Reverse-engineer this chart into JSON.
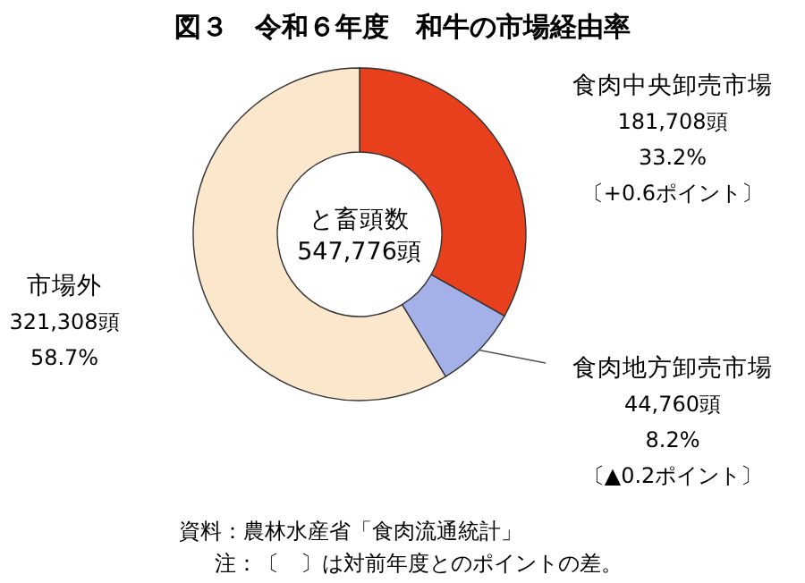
{
  "chart_data": {
    "type": "donut",
    "title": "図３　令和６年度　和牛の市場経由率",
    "categories": [
      "食肉中央卸売市場",
      "食肉地方卸売市場",
      "市場外"
    ],
    "values": [
      181708,
      44760,
      321308
    ],
    "colors": [
      "#e8401c",
      "#a4b0e8",
      "#fbe8cc"
    ],
    "value_labels": [
      "181,708頭\n33.2%\n〔+0.6ポイント〕",
      "44,760頭\n8.2%\n〔▲0.2ポイント〕",
      "321,308頭\n58.7%"
    ],
    "annotations": [
      "と畜頭数\n547,776頭",
      "資料：農林水産省「食肉流通統計」",
      "注：〔　〕は対前年度とのポイントの差。"
    ]
  }
}
